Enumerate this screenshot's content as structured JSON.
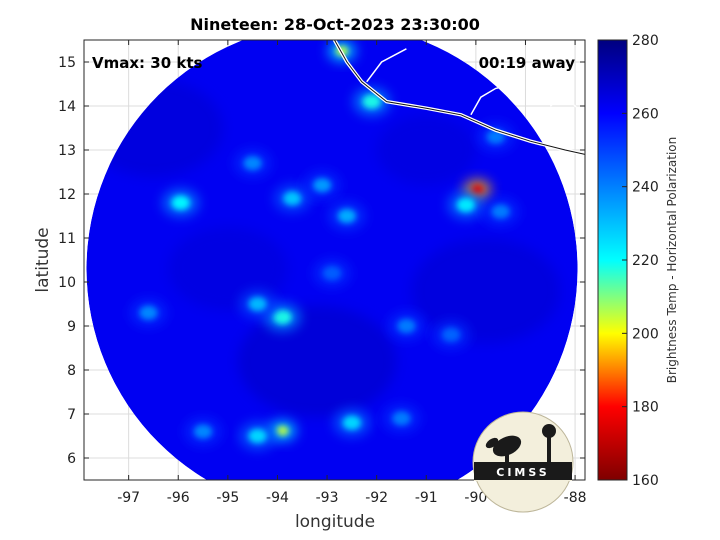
{
  "chart_data": {
    "type": "heatmap",
    "title": "Nineteen: 28-Oct-2023 23:30:00",
    "xlabel": "longitude",
    "ylabel": "latitude",
    "xlim": [
      -97.9,
      -87.8
    ],
    "ylim": [
      5.5,
      15.5
    ],
    "x_ticks": [
      -97,
      -96,
      -95,
      -94,
      -93,
      -92,
      -91,
      -90,
      -89,
      -88
    ],
    "x_tick_labels": [
      "-97",
      "-96",
      "-95",
      "-94",
      "-93",
      "-92",
      "-91",
      "-90",
      "-89",
      "-88"
    ],
    "y_ticks": [
      6,
      7,
      8,
      9,
      10,
      11,
      12,
      13,
      14,
      15
    ],
    "y_tick_labels": [
      "6",
      "7",
      "8",
      "9",
      "10",
      "11",
      "12",
      "13",
      "14",
      "15"
    ],
    "grid": true,
    "annotations": {
      "vmax": "Vmax: 30 kts",
      "time_away": "00:19 away"
    },
    "colorbar": {
      "label": "Brightness Temp - Horizontal Polarization",
      "min": 160,
      "max": 280,
      "ticks": [
        160,
        180,
        200,
        220,
        240,
        260,
        280
      ],
      "tick_labels": [
        "160",
        "180",
        "200",
        "220",
        "240",
        "260",
        "280"
      ],
      "colormap": "jet",
      "colors": [
        "#7f0000",
        "#ff0000",
        "#ffff00",
        "#00ffff",
        "#0080ff",
        "#0000ff",
        "#00007f"
      ]
    },
    "swath": {
      "center": [
        -92.9,
        10.3
      ],
      "radius_deg": 4.95,
      "background_value": 262
    },
    "features": [
      {
        "lon": -93.7,
        "lat": 11.9,
        "value": 228
      },
      {
        "lon": -93.1,
        "lat": 12.2,
        "value": 235
      },
      {
        "lon": -92.6,
        "lat": 11.5,
        "value": 232
      },
      {
        "lon": -94.5,
        "lat": 12.7,
        "value": 238
      },
      {
        "lon": -95.95,
        "lat": 11.8,
        "value": 220
      },
      {
        "lon": -93.9,
        "lat": 9.2,
        "value": 218
      },
      {
        "lon": -94.4,
        "lat": 9.5,
        "value": 230
      },
      {
        "lon": -89.97,
        "lat": 12.1,
        "value": 176
      },
      {
        "lon": -90.2,
        "lat": 11.75,
        "value": 222
      },
      {
        "lon": -89.5,
        "lat": 11.6,
        "value": 240
      },
      {
        "lon": -92.9,
        "lat": 10.2,
        "value": 245
      },
      {
        "lon": -93.9,
        "lat": 6.62,
        "value": 205
      },
      {
        "lon": -94.4,
        "lat": 6.5,
        "value": 225
      },
      {
        "lon": -92.5,
        "lat": 6.8,
        "value": 225
      },
      {
        "lon": -91.5,
        "lat": 6.9,
        "value": 240
      },
      {
        "lon": -95.5,
        "lat": 6.6,
        "value": 238
      },
      {
        "lon": -92.1,
        "lat": 14.1,
        "value": 218
      },
      {
        "lon": -92.7,
        "lat": 15.25,
        "value": 205
      },
      {
        "lon": -91.4,
        "lat": 9.0,
        "value": 240
      },
      {
        "lon": -90.5,
        "lat": 8.8,
        "value": 244
      },
      {
        "lon": -96.6,
        "lat": 9.3,
        "value": 238
      },
      {
        "lon": -89.6,
        "lat": 13.3,
        "value": 240
      }
    ]
  },
  "logo": {
    "text": "CIMSS",
    "name": "cimss-logo"
  }
}
